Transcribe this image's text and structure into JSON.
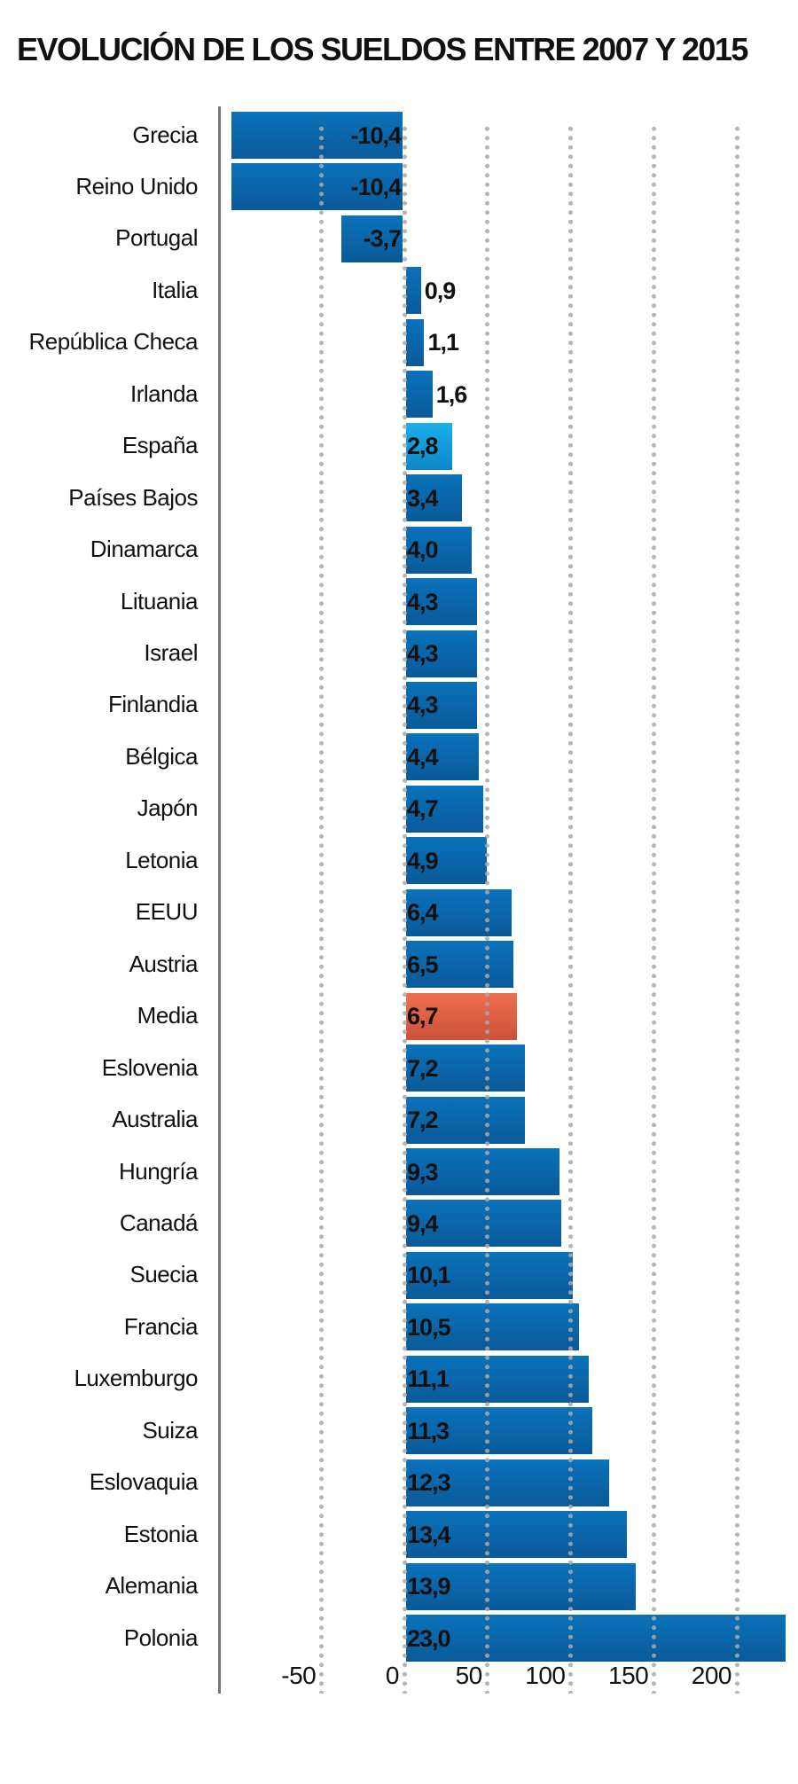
{
  "chart_data": {
    "type": "bar",
    "orientation": "horizontal",
    "title": "EVOLUCIÓN DE LOS SUELDOS ENTRE 2007 Y 2015",
    "xlabel": "",
    "ylabel": "",
    "x_ticks": [
      "-50",
      "0",
      "50",
      "100",
      "150",
      "200"
    ],
    "x_tick_values": [
      -50,
      0,
      50,
      100,
      150,
      200
    ],
    "grid": "vertical dotted",
    "categories": [
      "Grecia",
      "Reino Unido",
      "Portugal",
      "Italia",
      "República Checa",
      "Irlanda",
      "España",
      "Países Bajos",
      "Dinamarca",
      "Lituania",
      "Israel",
      "Finlandia",
      "Bélgica",
      "Japón",
      "Letonia",
      "EEUU",
      "Austria",
      "Media",
      "Eslovenia",
      "Australia",
      "Hungría",
      "Canadá",
      "Suecia",
      "Francia",
      "Luxemburgo",
      "Suiza",
      "Eslovaquia",
      "Estonia",
      "Alemania",
      "Polonia"
    ],
    "values": [
      -10.4,
      -10.4,
      -3.7,
      0.9,
      1.1,
      1.6,
      2.8,
      3.4,
      4.0,
      4.3,
      4.3,
      4.3,
      4.4,
      4.7,
      4.9,
      6.4,
      6.5,
      6.7,
      7.2,
      7.2,
      9.3,
      9.4,
      10.1,
      10.5,
      11.1,
      11.3,
      12.3,
      13.4,
      13.9,
      23.0
    ],
    "value_labels": [
      "-10,4",
      "-10,4",
      "-3,7",
      "0,9",
      "1,1",
      "1,6",
      "2,8",
      "3,4",
      "4,0",
      "4,3",
      "4,3",
      "4,3",
      "4,4",
      "4,7",
      "4,9",
      "6,4",
      "6,5",
      "6,7",
      "7,2",
      "7,2",
      "9,3",
      "9,4",
      "10,1",
      "10,5",
      "11,1",
      "11,3",
      "12,3",
      "13,4",
      "13,9",
      "23,0"
    ],
    "highlight": {
      "España": "#1aa8e4",
      "Media": "#e2603f"
    },
    "bar_color": "#0a68ad"
  }
}
